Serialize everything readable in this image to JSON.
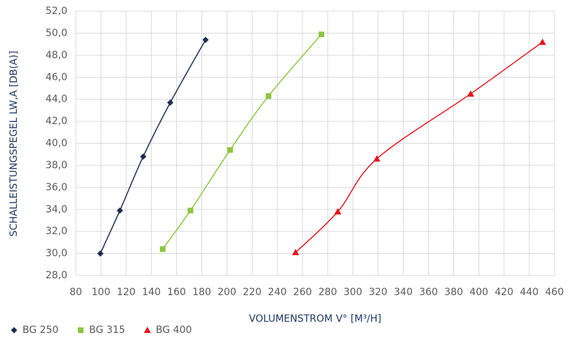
{
  "chart_data": {
    "type": "line",
    "xlabel": "VOLUMENSTROM V° [M³/H]",
    "ylabel": "SCHALLEISTUNGSPEGEL LW,A [DB(A)]",
    "xlim": [
      80,
      460
    ],
    "xticks": [
      80,
      100,
      120,
      140,
      160,
      180,
      200,
      220,
      240,
      260,
      280,
      300,
      320,
      340,
      360,
      380,
      400,
      420,
      440,
      460
    ],
    "ylim": [
      28,
      52
    ],
    "yticks": [
      {
        "value": 28,
        "label": "28,0"
      },
      {
        "value": 30,
        "label": "30,0"
      },
      {
        "value": 32,
        "label": "32,0"
      },
      {
        "value": 34,
        "label": "34,0"
      },
      {
        "value": 36,
        "label": "36,0"
      },
      {
        "value": 38,
        "label": "38,0"
      },
      {
        "value": 40,
        "label": "40,0"
      },
      {
        "value": 42,
        "label": "42,0"
      },
      {
        "value": 44,
        "label": "44,0"
      },
      {
        "value": 46,
        "label": "46,0"
      },
      {
        "value": 48,
        "label": "48,0"
      },
      {
        "value": 50,
        "label": "50,0"
      },
      {
        "value": 52,
        "label": "52,0"
      }
    ],
    "grid": true,
    "legend": "bottom-left",
    "series": [
      {
        "name": "BG 250",
        "color": "#1f2d4e",
        "marker": "diamond",
        "x": [
          99.5,
          115,
          133.5,
          155,
          183
        ],
        "values": [
          30.0,
          33.9,
          38.8,
          43.7,
          49.4
        ]
      },
      {
        "name": "BG 315",
        "color": "#8dc63f",
        "marker": "square",
        "x": [
          149,
          171,
          202.5,
          233,
          275
        ],
        "values": [
          30.4,
          33.9,
          39.4,
          44.3,
          49.9
        ]
      },
      {
        "name": "BG 400",
        "color": "#e8141c",
        "marker": "triangle",
        "x": [
          254.5,
          288,
          319,
          393.5,
          450.5
        ],
        "values": [
          30.1,
          33.8,
          38.6,
          44.5,
          49.2
        ]
      }
    ]
  }
}
